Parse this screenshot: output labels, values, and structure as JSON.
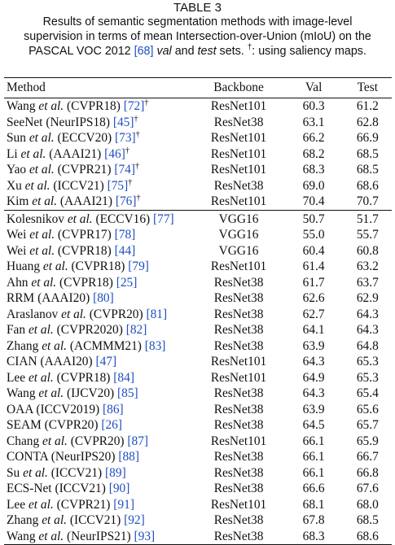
{
  "caption": {
    "label": "TABLE 3",
    "line1": "Results of semantic segmentation methods with image-level",
    "line2": "supervision in terms of mean Intersection-over-Union (mIoU) on the",
    "line3_a": "PASCAL VOC 2012 ",
    "line3_cite": "[68]",
    "line3_b": " ",
    "line3_val": "val",
    "line3_c": " and ",
    "line3_test": "test",
    "line3_d": " sets. ",
    "line3_dagger": "†",
    "line3_e": ": using saliency maps."
  },
  "columns": {
    "method": "Method",
    "backbone": "Backbone",
    "val": "Val",
    "test": "Test"
  },
  "group1": [
    {
      "author": "Wang",
      "etal": true,
      "venue": "(CVPR18)",
      "ref": "[72]",
      "dagger": "†",
      "backbone": "ResNet101",
      "val": "60.3",
      "test": "61.2"
    },
    {
      "author": "SeeNet",
      "etal": false,
      "venue": "(NeurIPS18)",
      "ref": "[45]",
      "dagger": "†",
      "backbone": "ResNet38",
      "val": "63.1",
      "test": "62.8"
    },
    {
      "author": "Sun",
      "etal": true,
      "venue": "(ECCV20)",
      "ref": "[73]",
      "dagger": "†",
      "backbone": "ResNet101",
      "val": "66.2",
      "test": "66.9"
    },
    {
      "author": "Li",
      "etal": true,
      "venue": "(AAAI21)",
      "ref": "[46]",
      "dagger": "†",
      "backbone": "ResNet101",
      "val": "68.2",
      "test": "68.5"
    },
    {
      "author": "Yao",
      "etal": true,
      "venue": "(CVPR21)",
      "ref": "[74]",
      "dagger": "†",
      "backbone": "ResNet101",
      "val": "68.3",
      "test": "68.5"
    },
    {
      "author": "Xu",
      "etal": true,
      "venue": "(ICCV21)",
      "ref": "[75]",
      "dagger": "†",
      "backbone": "ResNet38",
      "val": "69.0",
      "test": "68.6"
    },
    {
      "author": "Kim",
      "etal": true,
      "venue": "(AAAI21)",
      "ref": "[76]",
      "dagger": "†",
      "backbone": "ResNet101",
      "val": "70.4",
      "test": "70.7"
    }
  ],
  "group2": [
    {
      "author": "Kolesnikov",
      "etal": true,
      "venue": "(ECCV16)",
      "ref": "[77]",
      "dagger": "",
      "backbone": "VGG16",
      "val": "50.7",
      "test": "51.7"
    },
    {
      "author": "Wei",
      "etal": true,
      "venue": "(CVPR17)",
      "ref": "[78]",
      "dagger": "",
      "backbone": "VGG16",
      "val": "55.0",
      "test": "55.7"
    },
    {
      "author": "Wei",
      "etal": true,
      "venue": "(CVPR18)",
      "ref": "[44]",
      "dagger": "",
      "backbone": "VGG16",
      "val": "60.4",
      "test": "60.8"
    },
    {
      "author": "Huang",
      "etal": true,
      "venue": "(CVPR18)",
      "ref": "[79]",
      "dagger": "",
      "backbone": "ResNet101",
      "val": "61.4",
      "test": "63.2"
    },
    {
      "author": "Ahn",
      "etal": true,
      "venue": "(CVPR18)",
      "ref": "[25]",
      "dagger": "",
      "backbone": "ResNet38",
      "val": "61.7",
      "test": "63.7"
    },
    {
      "author": "RRM",
      "etal": false,
      "venue": "(AAAI20)",
      "ref": "[80]",
      "dagger": "",
      "backbone": "ResNet38",
      "val": "62.6",
      "test": "62.9"
    },
    {
      "author": "Araslanov",
      "etal": true,
      "venue": "(CVPR20)",
      "ref": "[81]",
      "dagger": "",
      "backbone": "ResNet38",
      "val": "62.7",
      "test": "64.3"
    },
    {
      "author": "Fan",
      "etal": true,
      "venue": "(CVPR2020)",
      "ref": "[82]",
      "dagger": "",
      "backbone": "ResNet38",
      "val": "64.1",
      "test": "64.3"
    },
    {
      "author": "Zhang",
      "etal": true,
      "venue": "(ACMMM21)",
      "ref": "[83]",
      "dagger": "",
      "backbone": "ResNet38",
      "val": "63.9",
      "test": "64.8"
    },
    {
      "author": "CIAN",
      "etal": false,
      "venue": "(AAAI20)",
      "ref": "[47]",
      "dagger": "",
      "backbone": "ResNet101",
      "val": "64.3",
      "test": "65.3"
    },
    {
      "author": "Lee",
      "etal": true,
      "venue": "(CVPR18)",
      "ref": "[84]",
      "dagger": "",
      "backbone": "ResNet101",
      "val": "64.9",
      "test": "65.3"
    },
    {
      "author": "Wang",
      "etal": true,
      "venue": "(IJCV20)",
      "ref": "[85]",
      "dagger": "",
      "backbone": "ResNet38",
      "val": "64.3",
      "test": "65.4"
    },
    {
      "author": "OAA",
      "etal": false,
      "venue": "(ICCV2019)",
      "ref": "[86]",
      "dagger": "",
      "backbone": "ResNet38",
      "val": "63.9",
      "test": "65.6"
    },
    {
      "author": "SEAM",
      "etal": false,
      "venue": "(CVPR20)",
      "ref": "[26]",
      "dagger": "",
      "backbone": "ResNet38",
      "val": "64.5",
      "test": "65.7"
    },
    {
      "author": "Chang",
      "etal": true,
      "venue": "(CVPR20)",
      "ref": "[87]",
      "dagger": "",
      "backbone": "ResNet101",
      "val": "66.1",
      "test": "65.9"
    },
    {
      "author": "CONTA",
      "etal": false,
      "venue": "(NeurIPS20)",
      "ref": "[88]",
      "dagger": "",
      "backbone": "ResNet38",
      "val": "66.1",
      "test": "66.7"
    },
    {
      "author": "Su",
      "etal": true,
      "venue": "(ICCV21)",
      "ref": "[89]",
      "dagger": "",
      "backbone": "ResNet38",
      "val": "66.1",
      "test": "66.8"
    },
    {
      "author": "ECS-Net",
      "etal": false,
      "venue": "(ICCV21)",
      "ref": "[90]",
      "dagger": "",
      "backbone": "ResNet38",
      "val": "66.6",
      "test": "67.6"
    },
    {
      "author": "Lee",
      "etal": true,
      "venue": "(CVPR21)",
      "ref": "[91]",
      "dagger": "",
      "backbone": "ResNet101",
      "val": "68.1",
      "test": "68.0"
    },
    {
      "author": "Zhang",
      "etal": true,
      "venue": "(ICCV21)",
      "ref": "[92]",
      "dagger": "",
      "backbone": "ResNet38",
      "val": "67.8",
      "test": "68.5"
    },
    {
      "author": "Wang",
      "etal": true,
      "venue": "(NeurIPS21)",
      "ref": "[93]",
      "dagger": "",
      "backbone": "ResNet38",
      "val": "68.3",
      "test": "68.6"
    }
  ],
  "text": {
    "etal": "et al.",
    "cite_color": "#1f4fbf"
  }
}
